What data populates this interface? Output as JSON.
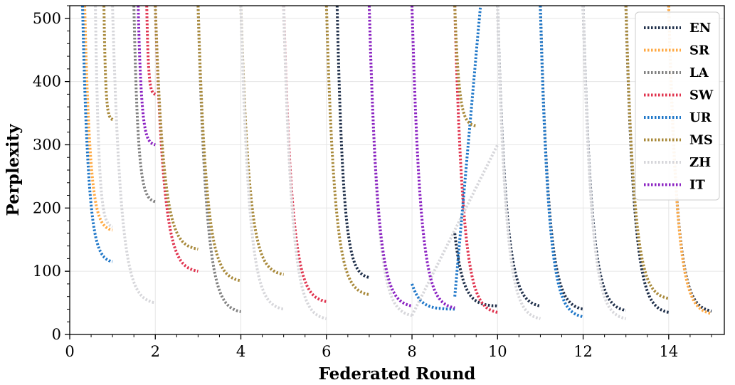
{
  "chart_data": {
    "type": "line",
    "title": "",
    "xlabel": "Federated Round",
    "ylabel": "Perplexity",
    "xlim": [
      0,
      15.3
    ],
    "ylim": [
      0,
      520
    ],
    "xticks": [
      0,
      2,
      4,
      6,
      8,
      10,
      12,
      14
    ],
    "yticks": [
      0,
      100,
      200,
      300,
      400,
      500
    ],
    "grid": true,
    "legend_position": "top-right",
    "line_style": "dotted",
    "series": [
      {
        "name": "EN",
        "color": "#1f2f4a",
        "segments": [
          {
            "x0": 6.25,
            "x1": 7.0,
            "start": 520,
            "end": 90
          },
          {
            "x0": 9.0,
            "x1": 10.0,
            "start": 160,
            "end": 45
          },
          {
            "x0": 10.0,
            "x1": 11.0,
            "start": 520,
            "end": 45
          },
          {
            "x0": 11.0,
            "x1": 12.0,
            "start": 520,
            "end": 40
          },
          {
            "x0": 12.0,
            "x1": 13.0,
            "start": 520,
            "end": 38
          },
          {
            "x0": 13.0,
            "x1": 14.0,
            "start": 520,
            "end": 35
          },
          {
            "x0": 14.0,
            "x1": 15.0,
            "start": 520,
            "end": 37
          }
        ]
      },
      {
        "name": "SR",
        "color": "#ffaa44",
        "segments": [
          {
            "x0": 0.35,
            "x1": 1.0,
            "start": 520,
            "end": 165
          },
          {
            "x0": 14.0,
            "x1": 15.0,
            "start": 520,
            "end": 33
          }
        ]
      },
      {
        "name": "LA",
        "color": "#808080",
        "segments": [
          {
            "x0": 1.5,
            "x1": 2.0,
            "start": 520,
            "end": 210
          },
          {
            "x0": 3.0,
            "x1": 4.0,
            "start": 520,
            "end": 36
          }
        ]
      },
      {
        "name": "SW",
        "color": "#e0344f",
        "segments": [
          {
            "x0": 1.8,
            "x1": 2.0,
            "start": 520,
            "end": 380
          },
          {
            "x0": 2.0,
            "x1": 3.0,
            "start": 520,
            "end": 100
          },
          {
            "x0": 5.0,
            "x1": 6.0,
            "start": 520,
            "end": 52
          },
          {
            "x0": 9.0,
            "x1": 10.0,
            "start": 520,
            "end": 35
          }
        ]
      },
      {
        "name": "UR",
        "color": "#1f77c8",
        "segments": [
          {
            "x0": 0.3,
            "x1": 1.0,
            "start": 520,
            "end": 115
          },
          {
            "x0": 8.0,
            "x1": 9.0,
            "start": 80,
            "end": 40
          },
          {
            "x0": 9.0,
            "x1": 9.6,
            "start": 60,
            "end": 520
          },
          {
            "x0": 11.0,
            "x1": 12.0,
            "start": 520,
            "end": 28
          }
        ]
      },
      {
        "name": "MS",
        "color": "#a8893a",
        "segments": [
          {
            "x0": 0.8,
            "x1": 1.0,
            "start": 520,
            "end": 340
          },
          {
            "x0": 2.0,
            "x1": 3.0,
            "start": 520,
            "end": 135
          },
          {
            "x0": 3.0,
            "x1": 4.0,
            "start": 520,
            "end": 85
          },
          {
            "x0": 4.0,
            "x1": 5.0,
            "start": 520,
            "end": 95
          },
          {
            "x0": 6.0,
            "x1": 7.0,
            "start": 520,
            "end": 63
          },
          {
            "x0": 9.0,
            "x1": 9.5,
            "start": 520,
            "end": 330
          },
          {
            "x0": 13.0,
            "x1": 14.0,
            "start": 520,
            "end": 57
          }
        ]
      },
      {
        "name": "ZH",
        "color": "#d6d6da",
        "segments": [
          {
            "x0": 0.6,
            "x1": 1.0,
            "start": 520,
            "end": 170
          },
          {
            "x0": 1.0,
            "x1": 2.0,
            "start": 520,
            "end": 50
          },
          {
            "x0": 4.0,
            "x1": 5.0,
            "start": 520,
            "end": 40
          },
          {
            "x0": 5.0,
            "x1": 6.0,
            "start": 520,
            "end": 25
          },
          {
            "x0": 7.0,
            "x1": 8.0,
            "start": 520,
            "end": 30
          },
          {
            "x0": 8.0,
            "x1": 10.0,
            "start": 30,
            "end": 300
          },
          {
            "x0": 10.0,
            "x1": 11.0,
            "start": 520,
            "end": 25
          },
          {
            "x0": 12.0,
            "x1": 13.0,
            "start": 520,
            "end": 25
          }
        ]
      },
      {
        "name": "IT",
        "color": "#8b22c2",
        "segments": [
          {
            "x0": 1.6,
            "x1": 2.0,
            "start": 520,
            "end": 300
          },
          {
            "x0": 7.0,
            "x1": 8.0,
            "start": 520,
            "end": 45
          },
          {
            "x0": 8.0,
            "x1": 9.0,
            "start": 520,
            "end": 42
          }
        ]
      }
    ]
  }
}
